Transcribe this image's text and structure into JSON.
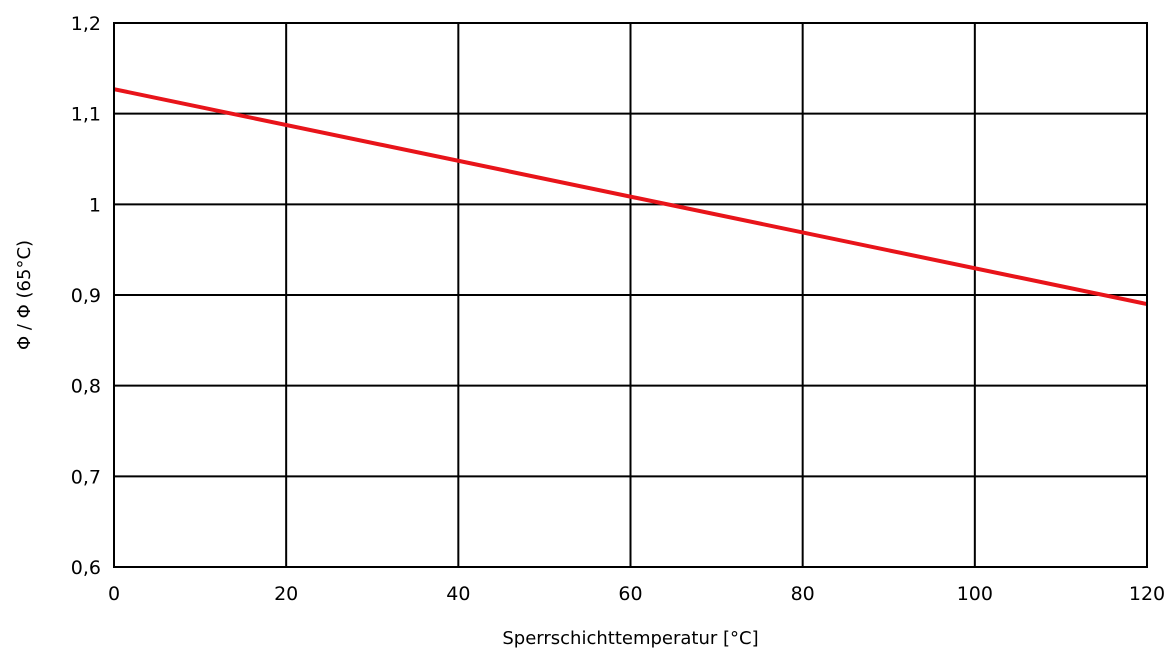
{
  "chart_data": {
    "type": "line",
    "title": "",
    "xlabel": "Sperrschichttemperatur [°C]",
    "ylabel": "Φ / Φ (65°C)",
    "xlim": [
      0,
      120
    ],
    "ylim": [
      0.6,
      1.2
    ],
    "xticks": [
      0,
      20,
      40,
      60,
      80,
      100,
      120
    ],
    "xtick_labels": [
      "0",
      "20",
      "40",
      "60",
      "80",
      "100",
      "120"
    ],
    "yticks": [
      0.6,
      0.7,
      0.8,
      0.9,
      1.0,
      1.1,
      1.2
    ],
    "ytick_labels": [
      "0,6",
      "0,7",
      "0,8",
      "0,9",
      "1",
      "1,1",
      "1,2"
    ],
    "grid": true,
    "series": [
      {
        "color": "#e8141a",
        "x": [
          0,
          120
        ],
        "y": [
          1.127,
          0.89
        ]
      }
    ]
  }
}
